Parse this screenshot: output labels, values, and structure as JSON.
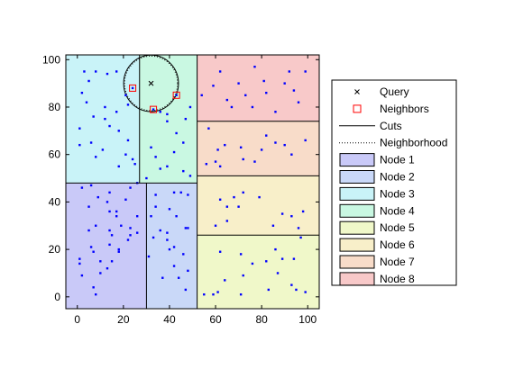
{
  "chart_data": {
    "type": "scatter",
    "title": "",
    "xlabel": "",
    "ylabel": "",
    "xlim": [
      -5,
      105
    ],
    "ylim": [
      -5,
      102
    ],
    "xticks": [
      0,
      20,
      40,
      60,
      80,
      100
    ],
    "yticks": [
      0,
      20,
      40,
      60,
      80,
      100
    ],
    "xtick_labels": [
      "0",
      "20",
      "40",
      "60",
      "80",
      "100"
    ],
    "ytick_labels": [
      "0",
      "20",
      "40",
      "60",
      "80",
      "100"
    ],
    "grid": false,
    "legend_position": "right",
    "colors": {
      "points": "#0000ff",
      "query": "#000000",
      "neighbors": "#ff0000",
      "cuts": "#000000",
      "neighborhood": "#000000"
    },
    "nodes": [
      {
        "name": "Node 1",
        "color": "#c9c9f8",
        "x": [
          -5,
          30
        ],
        "y": [
          -5,
          48
        ]
      },
      {
        "name": "Node 2",
        "color": "#c9d8f8",
        "x": [
          30,
          52
        ],
        "y": [
          -5,
          48
        ]
      },
      {
        "name": "Node 3",
        "color": "#c9f3f8",
        "x": [
          -5,
          27
        ],
        "y": [
          48,
          102
        ]
      },
      {
        "name": "Node 4",
        "color": "#c9f8e2",
        "x": [
          27,
          52
        ],
        "y": [
          48,
          102
        ]
      },
      {
        "name": "Node 5",
        "color": "#f0f8c9",
        "x": [
          52,
          105
        ],
        "y": [
          -5,
          26
        ]
      },
      {
        "name": "Node 6",
        "color": "#f8efc9",
        "x": [
          52,
          105
        ],
        "y": [
          26,
          51
        ]
      },
      {
        "name": "Node 7",
        "color": "#f8dcc9",
        "x": [
          52,
          105
        ],
        "y": [
          51,
          74
        ]
      },
      {
        "name": "Node 8",
        "color": "#f8c9c9",
        "x": [
          52,
          105
        ],
        "y": [
          74,
          102
        ]
      }
    ],
    "points": [
      [
        8,
        1
      ],
      [
        1,
        16
      ],
      [
        6,
        21
      ],
      [
        7,
        19
      ],
      [
        14,
        22
      ],
      [
        18,
        20
      ],
      [
        18,
        19
      ],
      [
        15,
        15
      ],
      [
        10,
        15
      ],
      [
        13,
        12
      ],
      [
        10,
        10
      ],
      [
        1,
        14
      ],
      [
        2,
        9
      ],
      [
        7,
        4
      ],
      [
        22,
        24
      ],
      [
        23,
        26
      ],
      [
        26,
        27
      ],
      [
        23,
        29
      ],
      [
        26,
        34
      ],
      [
        21,
        41
      ],
      [
        23,
        46
      ],
      [
        26,
        48
      ],
      [
        14,
        36
      ],
      [
        17,
        36
      ],
      [
        17,
        34
      ],
      [
        14,
        28
      ],
      [
        15,
        26
      ],
      [
        5,
        28
      ],
      [
        8,
        30
      ],
      [
        13,
        40
      ],
      [
        2,
        46
      ],
      [
        6,
        47
      ],
      [
        14,
        44
      ],
      [
        5,
        38
      ],
      [
        9,
        42
      ],
      [
        19,
        30
      ],
      [
        34,
        43
      ],
      [
        34,
        38
      ],
      [
        42,
        44
      ],
      [
        45,
        44
      ],
      [
        48,
        43
      ],
      [
        40,
        37
      ],
      [
        43,
        34
      ],
      [
        32,
        34
      ],
      [
        36,
        28
      ],
      [
        39,
        27
      ],
      [
        48,
        29
      ],
      [
        47,
        29
      ],
      [
        33,
        25
      ],
      [
        39,
        24
      ],
      [
        42,
        21
      ],
      [
        40,
        20
      ],
      [
        46,
        18
      ],
      [
        31,
        17
      ],
      [
        42,
        13
      ],
      [
        48,
        11
      ],
      [
        37,
        8
      ],
      [
        44,
        8
      ],
      [
        47,
        3
      ],
      [
        3,
        95
      ],
      [
        5,
        91
      ],
      [
        8,
        95
      ],
      [
        13,
        94
      ],
      [
        17,
        95
      ],
      [
        2,
        86
      ],
      [
        4,
        82
      ],
      [
        7,
        76
      ],
      [
        12,
        80
      ],
      [
        12,
        75
      ],
      [
        14,
        72
      ],
      [
        17,
        78
      ],
      [
        21,
        85
      ],
      [
        22,
        81
      ],
      [
        21,
        60
      ],
      [
        24,
        58
      ],
      [
        25,
        56
      ],
      [
        18,
        70
      ],
      [
        11,
        62
      ],
      [
        8,
        59
      ],
      [
        1,
        71
      ],
      [
        1,
        64
      ],
      [
        6,
        65
      ],
      [
        18,
        55
      ],
      [
        22,
        66
      ],
      [
        36,
        78
      ],
      [
        39,
        77
      ],
      [
        39,
        74
      ],
      [
        47,
        75
      ],
      [
        49,
        80
      ],
      [
        43,
        69
      ],
      [
        46,
        65
      ],
      [
        32,
        63
      ],
      [
        34,
        59
      ],
      [
        36,
        54
      ],
      [
        39,
        55
      ],
      [
        46,
        53
      ],
      [
        49,
        51
      ],
      [
        42,
        61
      ],
      [
        30,
        50
      ],
      [
        55,
        1
      ],
      [
        59,
        1
      ],
      [
        71,
        1
      ],
      [
        61,
        2
      ],
      [
        83,
        3
      ],
      [
        64,
        7
      ],
      [
        72,
        9
      ],
      [
        87,
        10
      ],
      [
        95,
        3
      ],
      [
        99,
        2
      ],
      [
        93,
        5
      ],
      [
        76,
        14
      ],
      [
        82,
        15
      ],
      [
        89,
        16
      ],
      [
        94,
        16
      ],
      [
        62,
        19
      ],
      [
        71,
        18
      ],
      [
        86,
        20
      ],
      [
        97,
        25
      ],
      [
        60,
        30
      ],
      [
        65,
        32
      ],
      [
        65,
        38
      ],
      [
        70,
        38
      ],
      [
        62,
        41
      ],
      [
        68,
        42
      ],
      [
        72,
        44
      ],
      [
        79,
        42
      ],
      [
        85,
        30
      ],
      [
        89,
        35
      ],
      [
        93,
        34
      ],
      [
        96,
        29
      ],
      [
        98,
        36
      ],
      [
        56,
        56
      ],
      [
        60,
        57
      ],
      [
        62,
        55
      ],
      [
        61,
        62
      ],
      [
        64,
        64
      ],
      [
        71,
        63
      ],
      [
        72,
        58
      ],
      [
        77,
        57
      ],
      [
        80,
        62
      ],
      [
        86,
        65
      ],
      [
        90,
        64
      ],
      [
        82,
        68
      ],
      [
        93,
        60
      ],
      [
        99,
        66
      ],
      [
        57,
        71
      ],
      [
        54,
        85
      ],
      [
        59,
        89
      ],
      [
        62,
        95
      ],
      [
        65,
        83
      ],
      [
        67,
        80
      ],
      [
        70,
        90
      ],
      [
        73,
        85
      ],
      [
        76,
        80
      ],
      [
        81,
        91
      ],
      [
        82,
        86
      ],
      [
        86,
        78
      ],
      [
        90,
        90
      ],
      [
        94,
        87
      ],
      [
        96,
        82
      ],
      [
        99,
        95
      ],
      [
        77,
        97
      ],
      [
        92,
        95
      ]
    ],
    "query": [
      32,
      90
    ],
    "neighbors": [
      [
        24,
        88
      ],
      [
        33,
        79
      ],
      [
        43,
        85
      ]
    ],
    "neighborhood_radius": 11.5,
    "outer_circle_radius": 11.9,
    "cuts": {
      "vertical": [
        {
          "x": 30,
          "y": [
            -5,
            48
          ]
        },
        {
          "x": 27,
          "y": [
            48,
            102
          ]
        },
        {
          "x": 52,
          "y": [
            -5,
            102
          ]
        }
      ],
      "horizontal": [
        {
          "y": 48,
          "x": [
            -5,
            52
          ]
        },
        {
          "y": 26,
          "x": [
            52,
            105
          ]
        },
        {
          "y": 51,
          "x": [
            52,
            105
          ]
        },
        {
          "y": 74,
          "x": [
            52,
            105
          ]
        }
      ]
    },
    "legend": [
      {
        "label": "Query",
        "kind": "query"
      },
      {
        "label": "Neighbors",
        "kind": "neighbor"
      },
      {
        "label": "Cuts",
        "kind": "cut"
      },
      {
        "label": "Neighborhood",
        "kind": "neighborhood"
      },
      {
        "label": "Node 1",
        "kind": "patch",
        "color": "#c9c9f8"
      },
      {
        "label": "Node 2",
        "kind": "patch",
        "color": "#c9d8f8"
      },
      {
        "label": "Node 3",
        "kind": "patch",
        "color": "#c9f3f8"
      },
      {
        "label": "Node 4",
        "kind": "patch",
        "color": "#c9f8e2"
      },
      {
        "label": "Node 5",
        "kind": "patch",
        "color": "#f0f8c9"
      },
      {
        "label": "Node 6",
        "kind": "patch",
        "color": "#f8efc9"
      },
      {
        "label": "Node 7",
        "kind": "patch",
        "color": "#f8dcc9"
      },
      {
        "label": "Node 8",
        "kind": "patch",
        "color": "#f8c9c9"
      }
    ]
  }
}
